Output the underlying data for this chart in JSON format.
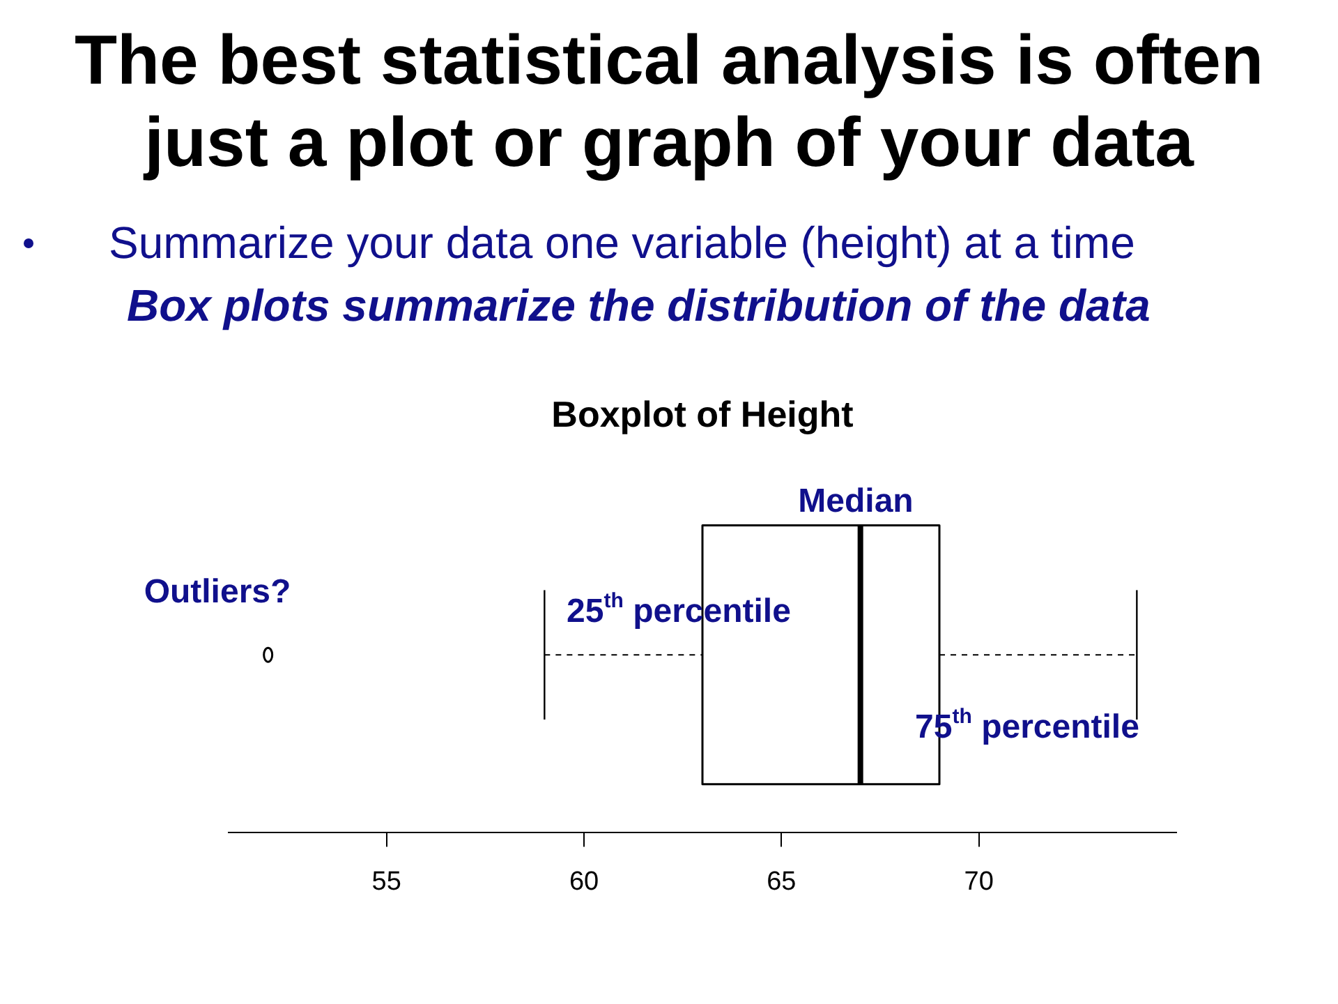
{
  "chart_data": {
    "type": "box",
    "title": "The best statistical analysis is often just a plot or graph of your data",
    "subtitle": "Boxplot of Height",
    "orientation": "horizontal",
    "categories": [
      null
    ],
    "boxes": [
      {
        "low": 59,
        "q1": 63,
        "median": 67,
        "q3": 69,
        "high": 74,
        "outliers": [
          52
        ]
      }
    ],
    "xlim": [
      51,
      75
    ],
    "xticks": [
      55,
      60,
      65,
      70
    ],
    "tick_labels": "x",
    "marker": "circle",
    "line_style": "dashed",
    "annotations": [
      "Summarize your data one variable (height) at a time",
      "Box plots summarize the distribution of the data",
      "Median",
      "Outliers?",
      {
        "text": "25$^{th}$ percentile",
        "x": 63
      },
      {
        "text": "75$^{th}$ percentile",
        "x": 69
      }
    ]
  }
}
